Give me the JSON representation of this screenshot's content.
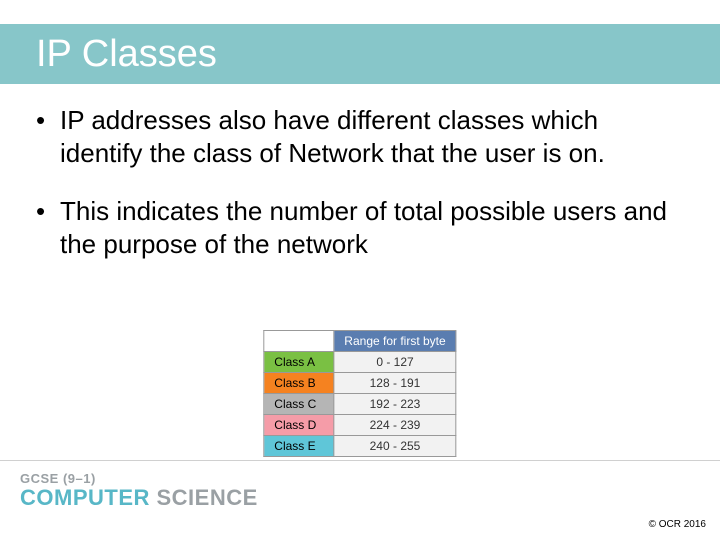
{
  "title": "IP Classes",
  "bullets": [
    "IP addresses also have different classes which identify the class of Network that the user is on.",
    "This indicates the number of total possible users and the purpose of the network"
  ],
  "table": {
    "header_blank": "",
    "header_range": "Range for first byte",
    "rows": [
      {
        "label": "Class A",
        "range": "0 - 127",
        "bg": "#7ac043"
      },
      {
        "label": "Class B",
        "range": "128 - 191",
        "bg": "#f58220"
      },
      {
        "label": "Class C",
        "range": "192 - 223",
        "bg": "#b5b5b5"
      },
      {
        "label": "Class D",
        "range": "224 - 239",
        "bg": "#f59ca8"
      },
      {
        "label": "Class E",
        "range": "240 - 255",
        "bg": "#5fc6d8"
      }
    ],
    "header_bg": "#5a7db0",
    "header_fg": "#ffffff",
    "range_cell_bg": "#f2f2f2",
    "border_color": "#999999"
  },
  "footer": {
    "line1": "GCSE (9–1)",
    "line2a": "COMPUTER ",
    "line2b": "SCIENCE"
  },
  "copyright": "© OCR 2016"
}
